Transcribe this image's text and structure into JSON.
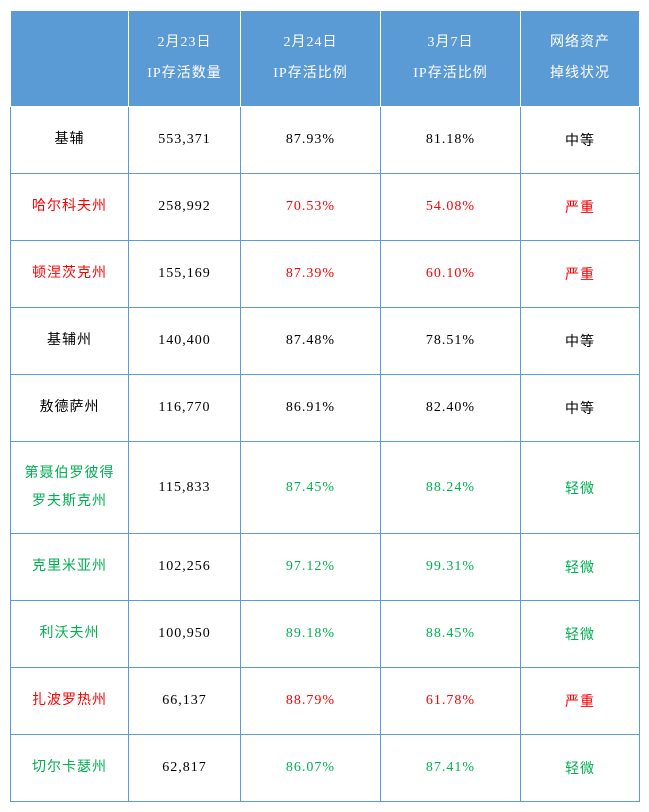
{
  "table": {
    "header_bg": "#5b9bd5",
    "header_text_color": "#ffffff",
    "border_color": "#5b9bd5",
    "header_border_color": "#ffffff",
    "font_family": "SimSun",
    "font_size_pt": 11,
    "colors": {
      "normal": "#000000",
      "severe": "#ff0000",
      "mild": "#00b050"
    },
    "columns": [
      {
        "key": "region",
        "line1": "",
        "line2": ""
      },
      {
        "key": "feb23",
        "line1": "2月23日",
        "line2": "IP存活数量"
      },
      {
        "key": "feb24",
        "line1": "2月24日",
        "line2": "IP存活比例"
      },
      {
        "key": "mar7",
        "line1": "3月7日",
        "line2": "IP存活比例"
      },
      {
        "key": "status",
        "line1": "网络资产",
        "line2": "掉线状况"
      }
    ],
    "rows": [
      {
        "region": "基辅",
        "feb23": "553,371",
        "feb24": "87.93%",
        "mar7": "81.18%",
        "status": "中等",
        "color": "normal"
      },
      {
        "region": "哈尔科夫州",
        "feb23": "258,992",
        "feb24": "70.53%",
        "mar7": "54.08%",
        "status": "严重",
        "color": "severe"
      },
      {
        "region": "顿涅茨克州",
        "feb23": "155,169",
        "feb24": "87.39%",
        "mar7": "60.10%",
        "status": "严重",
        "color": "severe"
      },
      {
        "region": "基辅州",
        "feb23": "140,400",
        "feb24": "87.48%",
        "mar7": "78.51%",
        "status": "中等",
        "color": "normal"
      },
      {
        "region": "敖德萨州",
        "feb23": "116,770",
        "feb24": "86.91%",
        "mar7": "82.40%",
        "status": "中等",
        "color": "normal"
      },
      {
        "region": "第聂伯罗彼得\n罗夫斯克州",
        "feb23": "115,833",
        "feb24": "87.45%",
        "mar7": "88.24%",
        "status": "轻微",
        "color": "mild"
      },
      {
        "region": "克里米亚州",
        "feb23": "102,256",
        "feb24": "97.12%",
        "mar7": "99.31%",
        "status": "轻微",
        "color": "mild"
      },
      {
        "region": "利沃夫州",
        "feb23": "100,950",
        "feb24": "89.18%",
        "mar7": "88.45%",
        "status": "轻微",
        "color": "mild"
      },
      {
        "region": "扎波罗热州",
        "feb23": "66,137",
        "feb24": "88.79%",
        "mar7": "61.78%",
        "status": "严重",
        "color": "severe"
      },
      {
        "region": "切尔卡瑟州",
        "feb23": "62,817",
        "feb24": "86.07%",
        "mar7": "87.41%",
        "status": "轻微",
        "color": "mild"
      }
    ]
  }
}
